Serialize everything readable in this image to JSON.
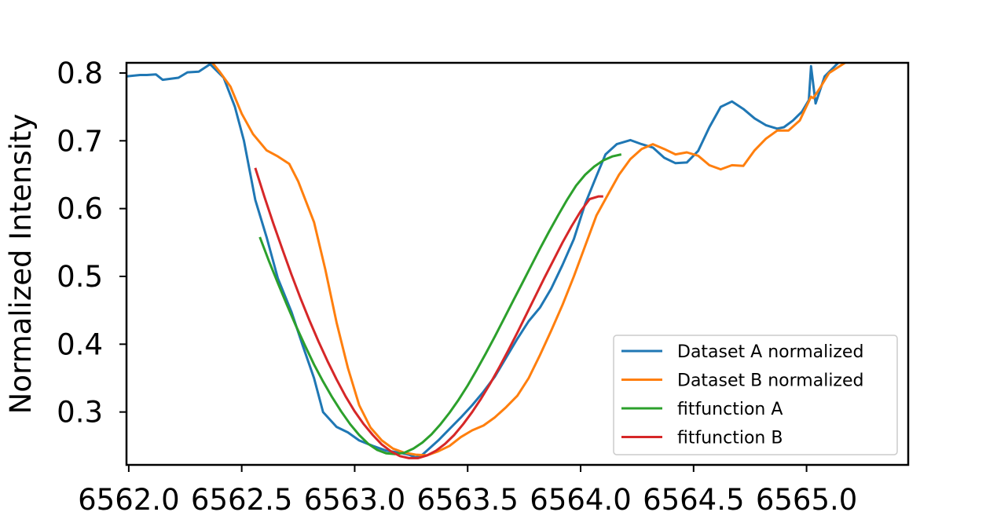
{
  "chart_data": {
    "type": "line",
    "title": "",
    "xlabel": "",
    "ylabel": "Normalized Intensity",
    "xlim": [
      6561.99,
      6565.45
    ],
    "ylim": [
      0.222,
      0.815
    ],
    "x_ticks": [
      6562.0,
      6562.5,
      6563.0,
      6563.5,
      6564.0,
      6564.5,
      6565.0
    ],
    "x_tick_labels": [
      "6562.0",
      "6562.5",
      "6563.0",
      "6563.5",
      "6564.0",
      "6564.5",
      "6565.0"
    ],
    "y_ticks": [
      0.3,
      0.4,
      0.5,
      0.6,
      0.7,
      0.8
    ],
    "y_tick_labels": [
      "0.3",
      "0.4",
      "0.5",
      "0.6",
      "0.7",
      "0.8"
    ],
    "grid": false,
    "legend_position": "bottom-right",
    "series": [
      {
        "name": "Dataset A normalized",
        "color": "#1f77b4",
        "x": [
          6561.99,
          6562.05,
          6562.08,
          6562.12,
          6562.15,
          6562.22,
          6562.26,
          6562.31,
          6562.36,
          6562.42,
          6562.47,
          6562.51,
          6562.56,
          6562.61,
          6562.66,
          6562.72,
          6562.77,
          6562.82,
          6562.86,
          6562.92,
          6562.97,
          6563.02,
          6563.08,
          6563.14,
          6563.2,
          6563.24,
          6563.27,
          6563.3,
          6563.33,
          6563.37,
          6563.42,
          6563.47,
          6563.52,
          6563.57,
          6563.62,
          6563.67,
          6563.72,
          6563.77,
          6563.82,
          6563.87,
          6563.92,
          6563.97,
          6564.02,
          6564.07,
          6564.11,
          6564.16,
          6564.22,
          6564.27,
          6564.32,
          6564.37,
          6564.42,
          6564.47,
          6564.52,
          6564.57,
          6564.62,
          6564.67,
          6564.72,
          6564.77,
          6564.82,
          6564.87,
          6564.9,
          6564.94,
          6564.98,
          6565.01,
          6565.02,
          6565.04,
          6565.08,
          6565.14
        ],
        "y": [
          0.795,
          0.797,
          0.797,
          0.798,
          0.79,
          0.793,
          0.801,
          0.802,
          0.813,
          0.793,
          0.75,
          0.7,
          0.613,
          0.558,
          0.497,
          0.448,
          0.398,
          0.35,
          0.3,
          0.278,
          0.27,
          0.258,
          0.25,
          0.243,
          0.24,
          0.237,
          0.233,
          0.237,
          0.246,
          0.258,
          0.275,
          0.292,
          0.31,
          0.33,
          0.352,
          0.38,
          0.408,
          0.434,
          0.454,
          0.482,
          0.517,
          0.555,
          0.607,
          0.648,
          0.68,
          0.695,
          0.701,
          0.695,
          0.69,
          0.675,
          0.667,
          0.668,
          0.685,
          0.72,
          0.75,
          0.758,
          0.747,
          0.733,
          0.723,
          0.718,
          0.72,
          0.73,
          0.743,
          0.76,
          0.81,
          0.755,
          0.795,
          0.815
        ]
      },
      {
        "name": "Dataset B normalized",
        "color": "#ff7f0e",
        "x": [
          6562.37,
          6562.4,
          6562.45,
          6562.5,
          6562.55,
          6562.61,
          6562.66,
          6562.71,
          6562.75,
          6562.82,
          6562.87,
          6562.92,
          6562.97,
          6563.02,
          6563.07,
          6563.12,
          6563.17,
          6563.22,
          6563.27,
          6563.32,
          6563.37,
          6563.42,
          6563.47,
          6563.52,
          6563.57,
          6563.62,
          6563.67,
          6563.72,
          6563.77,
          6563.82,
          6563.87,
          6563.92,
          6563.97,
          6564.02,
          6564.07,
          6564.12,
          6564.17,
          6564.22,
          6564.27,
          6564.32,
          6564.37,
          6564.42,
          6564.47,
          6564.52,
          6564.57,
          6564.62,
          6564.67,
          6564.72,
          6564.77,
          6564.82,
          6564.87,
          6564.92,
          6564.97,
          6565.02,
          6565.03,
          6565.06,
          6565.1,
          6565.17
        ],
        "y": [
          0.815,
          0.803,
          0.78,
          0.74,
          0.71,
          0.686,
          0.677,
          0.666,
          0.64,
          0.58,
          0.51,
          0.432,
          0.365,
          0.31,
          0.277,
          0.258,
          0.246,
          0.24,
          0.237,
          0.236,
          0.242,
          0.25,
          0.263,
          0.273,
          0.28,
          0.292,
          0.307,
          0.324,
          0.35,
          0.384,
          0.42,
          0.458,
          0.5,
          0.545,
          0.59,
          0.62,
          0.65,
          0.673,
          0.688,
          0.695,
          0.688,
          0.68,
          0.683,
          0.678,
          0.664,
          0.658,
          0.664,
          0.663,
          0.686,
          0.703,
          0.715,
          0.715,
          0.73,
          0.765,
          0.763,
          0.778,
          0.8,
          0.815
        ]
      },
      {
        "name": "fitfunction A",
        "color": "#2ca02c",
        "x": [
          6562.58,
          6562.62,
          6562.66,
          6562.7,
          6562.74,
          6562.78,
          6562.82,
          6562.86,
          6562.9,
          6562.94,
          6562.98,
          6563.02,
          6563.06,
          6563.1,
          6563.14,
          6563.18,
          6563.22,
          6563.26,
          6563.3,
          6563.34,
          6563.38,
          6563.42,
          6563.46,
          6563.5,
          6563.54,
          6563.58,
          6563.62,
          6563.66,
          6563.7,
          6563.74,
          6563.78,
          6563.82,
          6563.86,
          6563.9,
          6563.94,
          6563.98,
          6564.02,
          6564.06,
          6564.1,
          6564.14,
          6564.18
        ],
        "y": [
          0.558,
          0.523,
          0.49,
          0.458,
          0.427,
          0.398,
          0.37,
          0.345,
          0.322,
          0.301,
          0.282,
          0.266,
          0.253,
          0.244,
          0.239,
          0.238,
          0.24,
          0.246,
          0.255,
          0.267,
          0.282,
          0.299,
          0.318,
          0.339,
          0.362,
          0.386,
          0.411,
          0.437,
          0.463,
          0.489,
          0.515,
          0.541,
          0.566,
          0.59,
          0.613,
          0.634,
          0.65,
          0.662,
          0.671,
          0.677,
          0.68
        ]
      },
      {
        "name": "fitfunction B",
        "color": "#d62728",
        "x": [
          6562.56,
          6562.6,
          6562.64,
          6562.68,
          6562.72,
          6562.76,
          6562.8,
          6562.84,
          6562.88,
          6562.92,
          6562.96,
          6563.0,
          6563.04,
          6563.08,
          6563.12,
          6563.16,
          6563.2,
          6563.24,
          6563.28,
          6563.32,
          6563.36,
          6563.4,
          6563.44,
          6563.48,
          6563.52,
          6563.56,
          6563.6,
          6563.64,
          6563.68,
          6563.72,
          6563.76,
          6563.8,
          6563.84,
          6563.88,
          6563.92,
          6563.96,
          6564.0,
          6564.04,
          6564.08,
          6564.1
        ],
        "y": [
          0.66,
          0.618,
          0.578,
          0.54,
          0.503,
          0.468,
          0.435,
          0.404,
          0.375,
          0.348,
          0.323,
          0.301,
          0.282,
          0.266,
          0.252,
          0.242,
          0.235,
          0.232,
          0.232,
          0.236,
          0.243,
          0.253,
          0.266,
          0.282,
          0.3,
          0.32,
          0.342,
          0.366,
          0.391,
          0.417,
          0.444,
          0.471,
          0.498,
          0.524,
          0.55,
          0.574,
          0.596,
          0.614,
          0.618,
          0.618
        ]
      }
    ]
  }
}
